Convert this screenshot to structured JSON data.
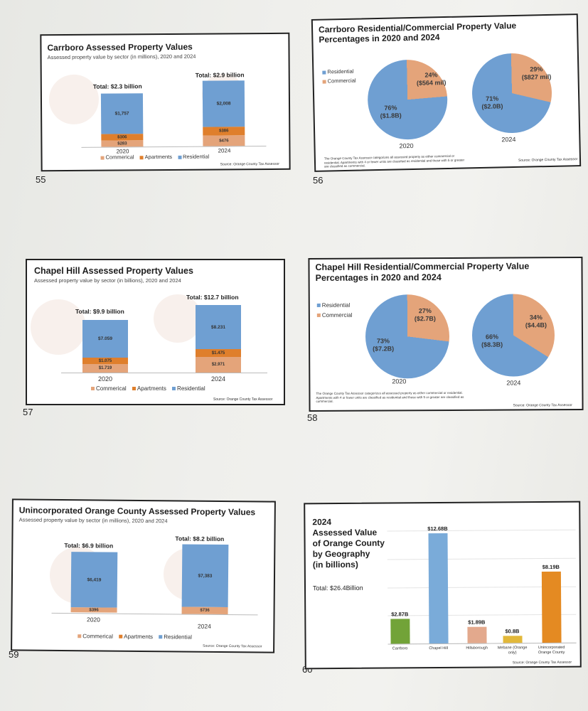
{
  "colors": {
    "residential": "#6f9fd2",
    "commercial": "#e4a47a",
    "apartments": "#df7f2c",
    "carrboro": "#72a338",
    "chapel_hill": "#7aabd9",
    "hillsborough": "#e3a98d",
    "mebane": "#e2b83a",
    "unincorporated": "#e48a22"
  },
  "pages": {
    "p55": "55",
    "p56": "56",
    "p57": "57",
    "p58": "58",
    "p59": "59",
    "p60": "60"
  },
  "slide55": {
    "title": "Carrboro Assessed Property Values",
    "subtitle": "Assessed property value by sector (in millions), 2020 and 2024",
    "total_2020": "Total: $2.3 billion",
    "total_2024": "Total: $2.9 billion",
    "res_2020": "$1,757",
    "apt_2020": "$306",
    "com_2020": "$283",
    "res_2024": "$2,008",
    "apt_2024": "$386",
    "com_2024": "$476",
    "year_2020": "2020",
    "year_2024": "2024",
    "legend": {
      "commercial": "Commerical",
      "apartments": "Apartments",
      "residential": "Residential"
    },
    "source": "Source: Orange County Tax Assessor"
  },
  "slide56": {
    "title": "Carrboro Residential/Commercial Property Value Percentages in 2020 and 2024",
    "legend": {
      "residential": "Residential",
      "commercial": "Commercial"
    },
    "res_2020": "76%\n($1.8B)",
    "com_2020": "24%\n($564 mil)",
    "res_2024": "71%\n($2.0B)",
    "com_2024": "29%\n($827 mil)",
    "year_2020": "2020",
    "year_2024": "2024",
    "note": "The Orange County Tax Assessor categorizes all assessed property as either commercial or residential. Apartments with 4 or fewer units are classified as residential and those with 5 or greater are classified as commercial.",
    "source": "Source: Orange County Tax Assessor"
  },
  "slide57": {
    "title": "Chapel Hill Assessed Property Values",
    "subtitle": "Assessed property value by sector (in billions), 2020 and 2024",
    "total_2020": "Total: $9.9 billion",
    "total_2024": "Total: $12.7 billion",
    "res_2020": "$7.059",
    "apt_2020": "$1.075",
    "com_2020": "$1.719",
    "res_2024": "$8.231",
    "apt_2024": "$1.475",
    "com_2024": "$2.971",
    "year_2020": "2020",
    "year_2024": "2024",
    "legend": {
      "commercial": "Commerical",
      "apartments": "Apartments",
      "residential": "Residential"
    },
    "source": "Source: Orange County Tax Assessor"
  },
  "slide58": {
    "title": "Chapel Hill Residential/Commercial Property Value Percentages in 2020 and 2024",
    "legend": {
      "residential": "Residential",
      "commercial": "Commercial"
    },
    "res_2020": "73%\n($7.2B)",
    "com_2020": "27%\n($2.7B)",
    "res_2024": "66%\n($8.3B)",
    "com_2024": "34%\n($4.4B)",
    "year_2020": "2020",
    "year_2024": "2024",
    "note": "The Orange County Tax Assessor categorizes all assessed property as either commercial or residential. Apartments with 4 or fewer units are classified as residential and those with 5 or greater are classified as commercial.",
    "source": "Source: Orange County Tax Assessor"
  },
  "slide59": {
    "title": "Unincorporated Orange County Assessed Property Values",
    "subtitle": "Assessed property value by sector (in millions), 2020 and 2024",
    "total_2020": "Total: $6.9 billion",
    "total_2024": "Total: $8.2 billion",
    "res_2020": "$6,419",
    "com_2020": "$396",
    "res_2024": "$7,383",
    "com_2024": "$736",
    "year_2020": "2020",
    "year_2024": "2024",
    "legend": {
      "commercial": "Commerical",
      "apartments": "Apartments",
      "residential": "Residential"
    },
    "source": "Source: Orange County Tax Assessor"
  },
  "slide60": {
    "title": "2024\nAssessed Value\nof Orange County\nby Geography\n(in billions)",
    "total": "Total: $26.4Billion",
    "source": "Source: Orange County Tax Assessor"
  },
  "chart_data": [
    {
      "type": "bar",
      "stacked": true,
      "title": "Carrboro Assessed Property Values",
      "subtitle": "Assessed property value by sector (in millions), 2020 and 2024",
      "categories": [
        "2020",
        "2024"
      ],
      "series": [
        {
          "name": "Commerical",
          "values": [
            283,
            476
          ]
        },
        {
          "name": "Apartments",
          "values": [
            306,
            386
          ]
        },
        {
          "name": "Residential",
          "values": [
            1757,
            2008
          ]
        }
      ]
    },
    {
      "type": "pie",
      "title": "Carrboro Residential/Commercial Property Value Percentages in 2020 and 2024",
      "series": [
        {
          "name": "2020",
          "labels": [
            "Residential",
            "Commercial"
          ],
          "values": [
            76,
            24
          ]
        },
        {
          "name": "2024",
          "labels": [
            "Residential",
            "Commercial"
          ],
          "values": [
            71,
            29
          ]
        }
      ]
    },
    {
      "type": "bar",
      "stacked": true,
      "title": "Chapel Hill Assessed Property Values",
      "subtitle": "Assessed property value by sector (in billions), 2020 and 2024",
      "categories": [
        "2020",
        "2024"
      ],
      "series": [
        {
          "name": "Commerical",
          "values": [
            1.719,
            2.971
          ]
        },
        {
          "name": "Apartments",
          "values": [
            1.075,
            1.475
          ]
        },
        {
          "name": "Residential",
          "values": [
            7.059,
            8.231
          ]
        }
      ]
    },
    {
      "type": "pie",
      "title": "Chapel Hill Residential/Commercial Property Value Percentages in 2020 and 2024",
      "series": [
        {
          "name": "2020",
          "labels": [
            "Residential",
            "Commercial"
          ],
          "values": [
            73,
            27
          ]
        },
        {
          "name": "2024",
          "labels": [
            "Residential",
            "Commercial"
          ],
          "values": [
            66,
            34
          ]
        }
      ]
    },
    {
      "type": "bar",
      "stacked": true,
      "title": "Unincorporated Orange County Assessed Property Values",
      "subtitle": "Assessed property value by sector (in millions), 2020 and 2024",
      "categories": [
        "2020",
        "2024"
      ],
      "series": [
        {
          "name": "Commerical",
          "values": [
            396,
            736
          ]
        },
        {
          "name": "Residential",
          "values": [
            6419,
            7383
          ]
        }
      ]
    },
    {
      "type": "bar",
      "title": "2024 Assessed Value of Orange County by Geography (in billions)",
      "categories": [
        "Carrboro",
        "Chapel Hill",
        "Hillsborough",
        "Mebane (Orange only)",
        "Unincorporated Orange County"
      ],
      "values": [
        2.87,
        12.68,
        1.89,
        0.8,
        8.19
      ],
      "labels": [
        "$2.87B",
        "$12.68B",
        "$1.89B",
        "$0.8B",
        "$8.19B"
      ],
      "ylim": [
        0,
        13
      ]
    }
  ]
}
